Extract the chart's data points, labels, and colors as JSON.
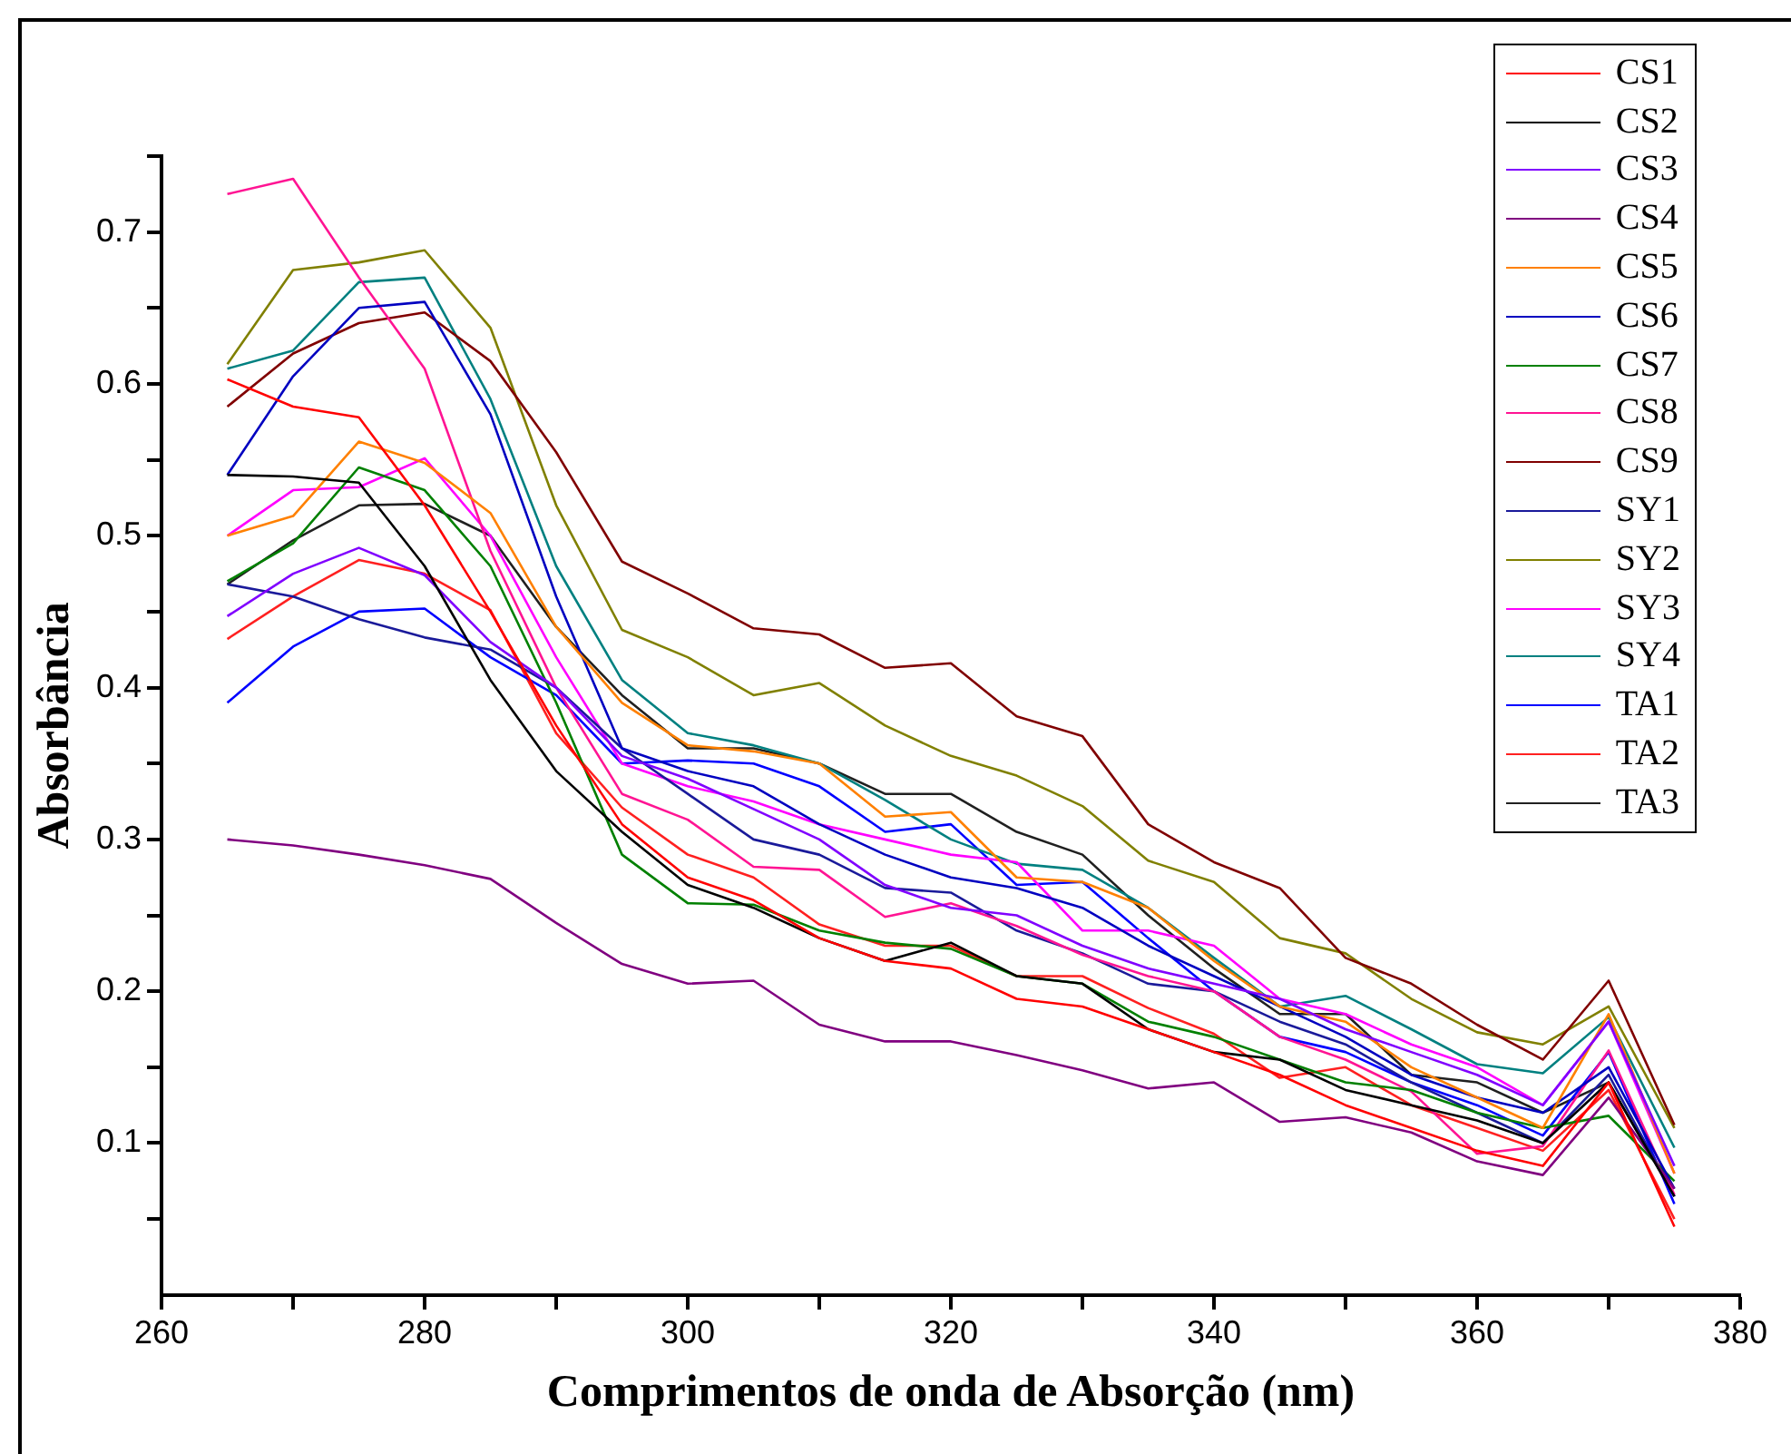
{
  "chart_data": {
    "type": "line",
    "xlabel": "Comprimentos de onda de Absorção (nm)",
    "ylabel": "Absorbância",
    "x": [
      265,
      270,
      275,
      280,
      285,
      290,
      295,
      300,
      305,
      310,
      315,
      320,
      325,
      330,
      335,
      340,
      345,
      350,
      355,
      360,
      365,
      370,
      375
    ],
    "xlim": [
      260,
      380
    ],
    "xticks": [
      260,
      {
        "value": 270,
        "label": null
      },
      280,
      {
        "value": 290,
        "label": null
      },
      300,
      {
        "value": 310,
        "label": null
      },
      320,
      {
        "value": 330,
        "label": null
      },
      340,
      {
        "value": 350,
        "label": null
      },
      360,
      {
        "value": 370,
        "label": null
      },
      380
    ],
    "ylim": [
      0,
      0.75
    ],
    "yticks": [
      {
        "value": 0.05,
        "label": null
      },
      0.1,
      {
        "value": 0.15,
        "label": null
      },
      0.2,
      {
        "value": 0.25,
        "label": null
      },
      0.3,
      {
        "value": 0.35,
        "label": null
      },
      0.4,
      {
        "value": 0.45,
        "label": null
      },
      0.5,
      {
        "value": 0.55,
        "label": null
      },
      0.6,
      {
        "value": 0.65,
        "label": null
      },
      0.7,
      {
        "value": 0.75,
        "label": null
      }
    ],
    "grid": false,
    "legend": "top right",
    "marker": "none",
    "line_style": "solid",
    "series": [
      {
        "name": "CS1",
        "color": "#ff0000",
        "values": [
          0.603,
          0.585,
          0.578,
          0.52,
          0.45,
          0.375,
          0.31,
          0.275,
          0.26,
          0.235,
          0.22,
          0.215,
          0.195,
          0.19,
          0.175,
          0.16,
          0.145,
          0.125,
          0.11,
          0.095,
          0.085,
          0.14,
          0.045
        ]
      },
      {
        "name": "CS2",
        "color": "#000000",
        "values": [
          0.54,
          0.539,
          0.535,
          0.48,
          0.405,
          0.345,
          0.305,
          0.27,
          0.255,
          0.235,
          0.22,
          0.232,
          0.21,
          0.205,
          0.175,
          0.16,
          0.155,
          0.135,
          0.125,
          0.115,
          0.1,
          0.14,
          0.065
        ]
      },
      {
        "name": "CS3",
        "color": "#8000ff",
        "values": [
          0.447,
          0.475,
          0.492,
          0.474,
          0.43,
          0.4,
          0.355,
          0.34,
          0.32,
          0.3,
          0.27,
          0.255,
          0.25,
          0.23,
          0.215,
          0.205,
          0.195,
          0.175,
          0.16,
          0.145,
          0.125,
          0.18,
          0.085
        ]
      },
      {
        "name": "CS4",
        "color": "#800080",
        "values": [
          0.3,
          0.296,
          0.29,
          0.283,
          0.274,
          0.245,
          0.218,
          0.205,
          0.207,
          0.178,
          0.167,
          0.167,
          0.158,
          0.148,
          0.136,
          0.14,
          0.114,
          0.117,
          0.107,
          0.088,
          0.079,
          0.13,
          0.07
        ]
      },
      {
        "name": "CS5",
        "color": "#ff8000",
        "values": [
          0.5,
          0.513,
          0.562,
          0.548,
          0.515,
          0.44,
          0.39,
          0.362,
          0.358,
          0.35,
          0.315,
          0.318,
          0.275,
          0.272,
          0.255,
          0.22,
          0.19,
          0.18,
          0.15,
          0.13,
          0.11,
          0.185,
          0.08
        ]
      },
      {
        "name": "CS6",
        "color": "#0000c0",
        "values": [
          0.54,
          0.605,
          0.65,
          0.654,
          0.58,
          0.46,
          0.36,
          0.345,
          0.335,
          0.31,
          0.29,
          0.275,
          0.268,
          0.255,
          0.23,
          0.21,
          0.19,
          0.17,
          0.145,
          0.13,
          0.12,
          0.15,
          0.07
        ]
      },
      {
        "name": "CS7",
        "color": "#008000",
        "values": [
          0.47,
          0.495,
          0.545,
          0.53,
          0.48,
          0.39,
          0.29,
          0.258,
          0.257,
          0.24,
          0.232,
          0.228,
          0.21,
          0.205,
          0.18,
          0.17,
          0.155,
          0.14,
          0.135,
          0.12,
          0.11,
          0.118,
          0.075
        ]
      },
      {
        "name": "CS8",
        "color": "#ff1493",
        "values": [
          0.725,
          0.735,
          0.67,
          0.61,
          0.49,
          0.4,
          0.33,
          0.313,
          0.282,
          0.28,
          0.249,
          0.258,
          0.243,
          0.224,
          0.21,
          0.2,
          0.17,
          0.155,
          0.134,
          0.093,
          0.098,
          0.161,
          0.066
        ]
      },
      {
        "name": "CS9",
        "color": "#800000",
        "values": [
          0.585,
          0.62,
          0.64,
          0.647,
          0.615,
          0.555,
          0.483,
          0.462,
          0.439,
          0.435,
          0.413,
          0.416,
          0.381,
          0.368,
          0.31,
          0.285,
          0.268,
          0.222,
          0.205,
          0.178,
          0.155,
          0.207,
          0.112
        ]
      },
      {
        "name": "SY1",
        "color": "#1a1a9a",
        "values": [
          0.468,
          0.46,
          0.445,
          0.433,
          0.425,
          0.4,
          0.36,
          0.33,
          0.3,
          0.29,
          0.268,
          0.265,
          0.24,
          0.225,
          0.205,
          0.2,
          0.18,
          0.165,
          0.14,
          0.12,
          0.1,
          0.145,
          0.065
        ]
      },
      {
        "name": "SY2",
        "color": "#808000",
        "values": [
          0.613,
          0.675,
          0.68,
          0.688,
          0.637,
          0.52,
          0.438,
          0.42,
          0.395,
          0.403,
          0.375,
          0.355,
          0.342,
          0.322,
          0.286,
          0.272,
          0.235,
          0.225,
          0.195,
          0.173,
          0.165,
          0.19,
          0.11
        ]
      },
      {
        "name": "SY3",
        "color": "#ff00ff",
        "values": [
          0.5,
          0.53,
          0.532,
          0.551,
          0.5,
          0.42,
          0.35,
          0.335,
          0.325,
          0.31,
          0.3,
          0.29,
          0.285,
          0.24,
          0.24,
          0.23,
          0.195,
          0.185,
          0.165,
          0.15,
          0.125,
          0.18,
          0.08
        ]
      },
      {
        "name": "SY4",
        "color": "#008080",
        "values": [
          0.61,
          0.622,
          0.667,
          0.67,
          0.59,
          0.48,
          0.405,
          0.37,
          0.362,
          0.35,
          0.326,
          0.3,
          0.284,
          0.28,
          0.255,
          0.222,
          0.19,
          0.197,
          0.175,
          0.152,
          0.146,
          0.183,
          0.097
        ]
      },
      {
        "name": "TA1",
        "color": "#0000ff",
        "values": [
          0.39,
          0.427,
          0.45,
          0.452,
          0.42,
          0.395,
          0.35,
          0.352,
          0.35,
          0.335,
          0.305,
          0.31,
          0.27,
          0.272,
          0.235,
          0.2,
          0.17,
          0.16,
          0.14,
          0.125,
          0.105,
          0.16,
          0.06
        ]
      },
      {
        "name": "TA2",
        "color": "#ff2020",
        "values": [
          0.432,
          0.46,
          0.484,
          0.475,
          0.451,
          0.37,
          0.321,
          0.29,
          0.275,
          0.244,
          0.23,
          0.23,
          0.21,
          0.21,
          0.189,
          0.172,
          0.143,
          0.15,
          0.125,
          0.11,
          0.095,
          0.135,
          0.05
        ]
      },
      {
        "name": "TA3",
        "color": "#202020",
        "values": [
          0.468,
          0.497,
          0.52,
          0.521,
          0.5,
          0.44,
          0.395,
          0.36,
          0.36,
          0.35,
          0.33,
          0.33,
          0.305,
          0.29,
          0.25,
          0.215,
          0.185,
          0.185,
          0.145,
          0.14,
          0.12,
          0.14,
          0.065
        ]
      }
    ]
  }
}
